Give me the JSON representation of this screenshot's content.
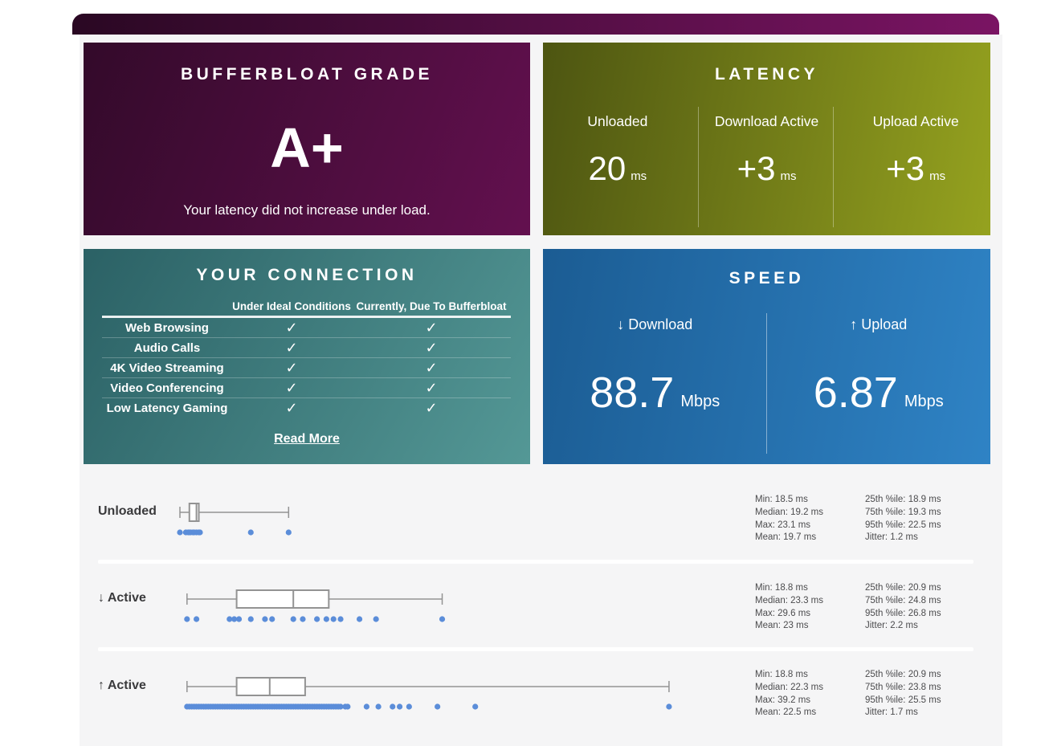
{
  "icons": {
    "check": "✓"
  },
  "colors": {
    "page_bg": "#ffffff",
    "panel_bg": "#f5f5f6",
    "topbar_gradient": [
      "#2a0823",
      "#7a1463"
    ],
    "grade_gradient": [
      "#330a2a",
      "#63104f"
    ],
    "latency_gradient": [
      "#4d5511",
      "#95a21f"
    ],
    "connection_gradient": [
      "#2b6165",
      "#549896"
    ],
    "speed_gradient": [
      "#1b5c93",
      "#2f83c5"
    ],
    "dot": "#5b8dd9",
    "box_stroke": "#939393",
    "stats_text": "#4c4c4e"
  },
  "cards": {
    "grade": {
      "title": "BUFFERBLOAT GRADE",
      "grade": "A+",
      "caption": "Your latency did not increase under load."
    },
    "latency": {
      "title": "LATENCY",
      "columns": [
        {
          "label": "Unloaded",
          "value": "20",
          "unit": "ms"
        },
        {
          "label": "Download Active",
          "value": "+3",
          "unit": "ms"
        },
        {
          "label": "Upload Active",
          "value": "+3",
          "unit": "ms"
        }
      ]
    },
    "connection": {
      "title": "YOUR CONNECTION",
      "col_headers": [
        "Under Ideal Conditions",
        "Currently, Due To Bufferbloat"
      ],
      "rows": [
        {
          "label": "Web Browsing",
          "ideal": true,
          "current": true
        },
        {
          "label": "Audio Calls",
          "ideal": true,
          "current": true
        },
        {
          "label": "4K Video Streaming",
          "ideal": true,
          "current": true
        },
        {
          "label": "Video Conferencing",
          "ideal": true,
          "current": true
        },
        {
          "label": "Low Latency Gaming",
          "ideal": true,
          "current": true
        }
      ],
      "read_more": "Read More"
    },
    "speed": {
      "title": "SPEED",
      "columns": [
        {
          "label": "↓ Download",
          "value": "88.7",
          "unit": "Mbps"
        },
        {
          "label": "↑ Upload",
          "value": "6.87",
          "unit": "Mbps"
        }
      ]
    }
  },
  "chart_data": {
    "type": "boxplot",
    "unit": "ms",
    "axis": {
      "min": 18.5,
      "max": 42.5,
      "grid": false
    },
    "rows": [
      {
        "label": "Unloaded",
        "box": {
          "min": 18.5,
          "q1": 18.9,
          "median": 19.2,
          "q3": 19.3,
          "max": 23.1
        },
        "points": [
          18.5,
          18.75,
          18.85,
          18.9,
          18.95,
          19.05,
          19.1,
          19.2,
          19.3,
          19.35,
          21.5,
          23.1
        ],
        "stats_left": [
          "Min: 18.5 ms",
          "Median: 19.2 ms",
          "Max: 23.1 ms",
          "Mean: 19.7 ms"
        ],
        "stats_right": [
          "25th %ile: 18.9 ms",
          "75th %ile: 19.3 ms",
          "95th %ile: 22.5 ms",
          "Jitter: 1.2 ms"
        ]
      },
      {
        "label": "↓ Active",
        "box": {
          "min": 18.8,
          "q1": 20.9,
          "median": 23.3,
          "q3": 24.8,
          "max": 29.6
        },
        "points": [
          18.8,
          19.2,
          20.6,
          20.8,
          21.0,
          21.5,
          22.1,
          22.4,
          23.3,
          23.7,
          24.3,
          24.7,
          25.0,
          25.3,
          26.1,
          26.8,
          29.6
        ],
        "stats_left": [
          "Min: 18.8 ms",
          "Median: 23.3 ms",
          "Max: 29.6 ms",
          "Mean: 23 ms"
        ],
        "stats_right": [
          "25th %ile: 20.9 ms",
          "75th %ile: 24.8 ms",
          "95th %ile: 26.8 ms",
          "Jitter: 2.2 ms"
        ]
      },
      {
        "label": "↑ Active",
        "box": {
          "min": 18.8,
          "q1": 20.9,
          "median": 22.3,
          "q3": 23.8,
          "max": 39.2
        },
        "points": [
          18.8,
          18.9,
          19.0,
          19.1,
          19.2,
          19.3,
          19.4,
          19.5,
          19.6,
          19.7,
          19.8,
          19.9,
          20.0,
          20.1,
          20.2,
          20.3,
          20.4,
          20.5,
          20.6,
          20.7,
          20.8,
          20.9,
          21.0,
          21.1,
          21.2,
          21.3,
          21.4,
          21.5,
          21.6,
          21.7,
          21.8,
          21.9,
          22.0,
          22.1,
          22.2,
          22.3,
          22.4,
          22.5,
          22.6,
          22.7,
          22.8,
          22.9,
          23.0,
          23.1,
          23.2,
          23.3,
          23.4,
          23.5,
          23.6,
          23.7,
          23.8,
          23.9,
          24.0,
          24.1,
          24.2,
          24.3,
          24.4,
          24.5,
          24.6,
          24.7,
          24.8,
          24.9,
          25.0,
          25.1,
          25.2,
          25.3,
          25.5,
          25.6,
          26.4,
          26.9,
          27.5,
          27.8,
          28.2,
          29.4,
          31.0,
          39.2
        ],
        "stats_left": [
          "Min: 18.8 ms",
          "Median: 22.3 ms",
          "Max: 39.2 ms",
          "Mean: 22.5 ms"
        ],
        "stats_right": [
          "25th %ile: 20.9 ms",
          "75th %ile: 23.8 ms",
          "95th %ile: 25.5 ms",
          "Jitter: 1.7 ms"
        ]
      }
    ]
  }
}
